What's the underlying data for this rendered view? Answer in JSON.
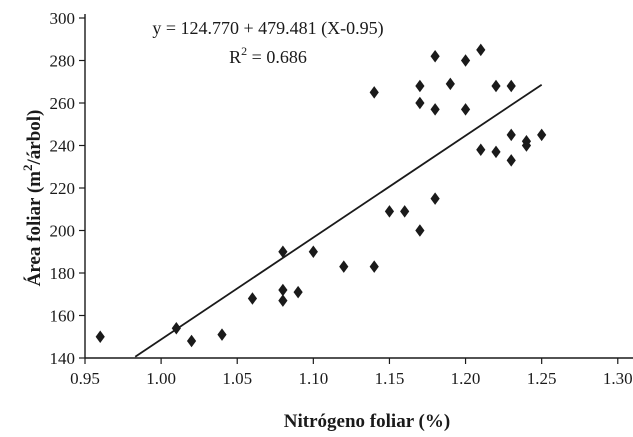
{
  "chart_data": {
    "type": "scatter",
    "xlabel": "Nitrógeno foliar (%)",
    "ylabel_main": "Área foliar (m",
    "ylabel_sup": "2",
    "ylabel_tail": "/árbol)",
    "xlim": [
      0.95,
      1.31
    ],
    "ylim": [
      140,
      300
    ],
    "x_ticks": [
      "0.95",
      "1.00",
      "1.05",
      "1.10",
      "1.15",
      "1.20",
      "1.25",
      "1.30"
    ],
    "y_ticks": [
      "140",
      "160",
      "180",
      "200",
      "220",
      "240",
      "260",
      "280",
      "300"
    ],
    "x_tick_values": [
      0.95,
      1.0,
      1.05,
      1.1,
      1.15,
      1.2,
      1.25,
      1.3
    ],
    "y_tick_values": [
      140,
      160,
      180,
      200,
      220,
      240,
      260,
      280,
      300
    ],
    "annotations": {
      "equation": "y = 124.770 + 479.481 (X-0.95)",
      "r2_label": "R",
      "r2_sup": "2",
      "r2_value": " = 0.686"
    },
    "marker": "diamond",
    "marker_color": "#1a1a1a",
    "points": [
      {
        "x": 0.96,
        "y": 150
      },
      {
        "x": 1.01,
        "y": 154
      },
      {
        "x": 1.02,
        "y": 148
      },
      {
        "x": 1.04,
        "y": 151
      },
      {
        "x": 1.06,
        "y": 168
      },
      {
        "x": 1.08,
        "y": 167
      },
      {
        "x": 1.08,
        "y": 172
      },
      {
        "x": 1.08,
        "y": 190
      },
      {
        "x": 1.09,
        "y": 171
      },
      {
        "x": 1.1,
        "y": 190
      },
      {
        "x": 1.12,
        "y": 183
      },
      {
        "x": 1.14,
        "y": 183
      },
      {
        "x": 1.14,
        "y": 265
      },
      {
        "x": 1.15,
        "y": 209
      },
      {
        "x": 1.16,
        "y": 209
      },
      {
        "x": 1.17,
        "y": 200
      },
      {
        "x": 1.17,
        "y": 260
      },
      {
        "x": 1.17,
        "y": 268
      },
      {
        "x": 1.18,
        "y": 215
      },
      {
        "x": 1.18,
        "y": 257
      },
      {
        "x": 1.18,
        "y": 282
      },
      {
        "x": 1.19,
        "y": 269
      },
      {
        "x": 1.2,
        "y": 257
      },
      {
        "x": 1.2,
        "y": 280
      },
      {
        "x": 1.21,
        "y": 238
      },
      {
        "x": 1.21,
        "y": 285
      },
      {
        "x": 1.22,
        "y": 237
      },
      {
        "x": 1.22,
        "y": 268
      },
      {
        "x": 1.23,
        "y": 233
      },
      {
        "x": 1.23,
        "y": 245
      },
      {
        "x": 1.23,
        "y": 268
      },
      {
        "x": 1.24,
        "y": 240
      },
      {
        "x": 1.24,
        "y": 242
      },
      {
        "x": 1.25,
        "y": 245
      }
    ],
    "trendline": {
      "x_start": 0.983,
      "x_end": 1.25,
      "intercept": 124.77,
      "slope": 479.481,
      "x_offset": 0.95
    }
  }
}
